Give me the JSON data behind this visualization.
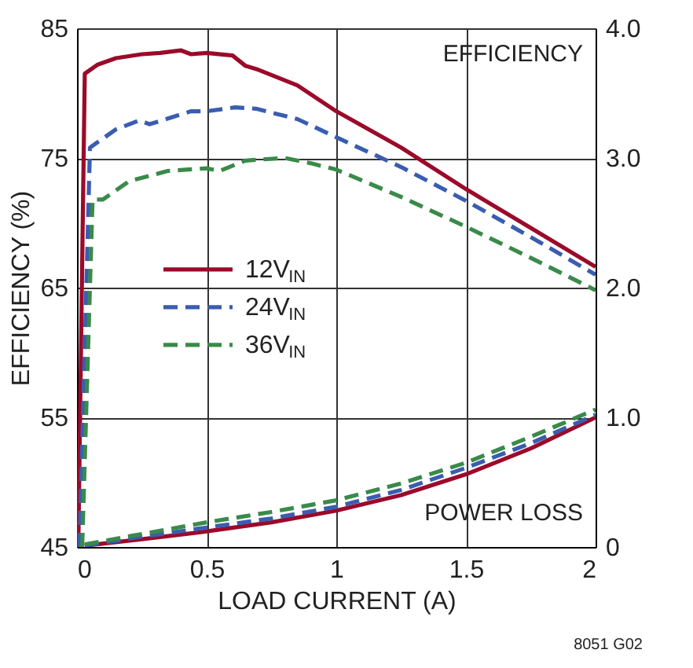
{
  "chart_data": {
    "type": "line",
    "xlabel": "LOAD CURRENT (A)",
    "ylabel": "EFFICIENCY (%)",
    "xlim": [
      0,
      2
    ],
    "xticks": [
      0,
      0.5,
      1,
      1.5,
      2
    ],
    "ylim": [
      45,
      85
    ],
    "yticks": [
      45,
      55,
      65,
      75,
      85
    ],
    "y2lim": [
      0,
      4
    ],
    "y2ticks": [
      0,
      {
        "value": 1,
        "label": "1.0"
      },
      {
        "value": 2,
        "label": "2.0"
      },
      {
        "value": 3,
        "label": "3.0"
      },
      {
        "value": 4,
        "label": "4.0"
      }
    ],
    "grid": true,
    "legend": "left",
    "marker": "none",
    "annotations": [
      "EFFICIENCY",
      "POWER LOSS",
      "8051 G02"
    ],
    "series": [
      {
        "name": "12V$_{IN}$",
        "color": "#9b0a2a",
        "line_style": "solid",
        "x": [
          0.005,
          0.03,
          0.08,
          0.15,
          0.25,
          0.32,
          0.4,
          0.44,
          0.5,
          0.6,
          0.65,
          0.7,
          0.85,
          1.0,
          1.25,
          1.5,
          1.75,
          2.0
        ],
        "values": [
          45,
          81.5,
          82.2,
          82.7,
          83.0,
          83.1,
          83.3,
          83.0,
          83.1,
          82.9,
          82.1,
          81.8,
          80.6,
          78.6,
          75.8,
          72.6,
          69.6,
          66.6
        ]
      },
      {
        "name": "24V$_{IN}$",
        "color": "#3a5db0",
        "line_style": "dashed",
        "x": [
          0.01,
          0.05,
          0.15,
          0.24,
          0.28,
          0.44,
          0.5,
          0.61,
          0.69,
          0.85,
          1.0,
          1.25,
          1.5,
          1.75,
          2.0
        ],
        "values": [
          45,
          75.8,
          77.2,
          77.9,
          77.6,
          78.6,
          78.6,
          78.9,
          78.8,
          78.0,
          76.6,
          74.3,
          71.7,
          68.9,
          66.0
        ]
      },
      {
        "name": "36V$_{IN}$",
        "color": "#3a8a4a",
        "line_style": "dashed",
        "x": [
          0.02,
          0.06,
          0.1,
          0.2,
          0.35,
          0.5,
          0.55,
          0.65,
          0.8,
          0.9,
          1.0,
          1.25,
          1.5,
          1.75,
          2.0
        ],
        "values": [
          45,
          71.8,
          71.8,
          73.2,
          74.0,
          74.2,
          74.0,
          74.8,
          75.0,
          74.6,
          74.1,
          72.0,
          69.7,
          67.3,
          64.8
        ]
      },
      {
        "color": "#9b0a2a",
        "line_style": "solid",
        "axis": "y2",
        "x": [
          0.03,
          0.25,
          0.5,
          0.75,
          1.0,
          1.25,
          1.5,
          1.75,
          2.0
        ],
        "values": [
          0.01,
          0.06,
          0.12,
          0.19,
          0.28,
          0.4,
          0.56,
          0.76,
          1.0
        ]
      },
      {
        "color": "#3a5db0",
        "line_style": "dashed",
        "axis": "y2",
        "x": [
          0.03,
          0.25,
          0.5,
          0.75,
          1.0,
          1.25,
          1.5,
          1.75,
          2.0
        ],
        "values": [
          0.01,
          0.08,
          0.15,
          0.22,
          0.31,
          0.44,
          0.61,
          0.8,
          1.02
        ]
      },
      {
        "color": "#3a8a4a",
        "line_style": "dashed",
        "axis": "y2",
        "x": [
          0.03,
          0.25,
          0.5,
          0.75,
          1.0,
          1.25,
          1.5,
          1.75,
          2.0
        ],
        "values": [
          0.02,
          0.1,
          0.19,
          0.27,
          0.36,
          0.49,
          0.65,
          0.85,
          1.06
        ]
      }
    ]
  }
}
